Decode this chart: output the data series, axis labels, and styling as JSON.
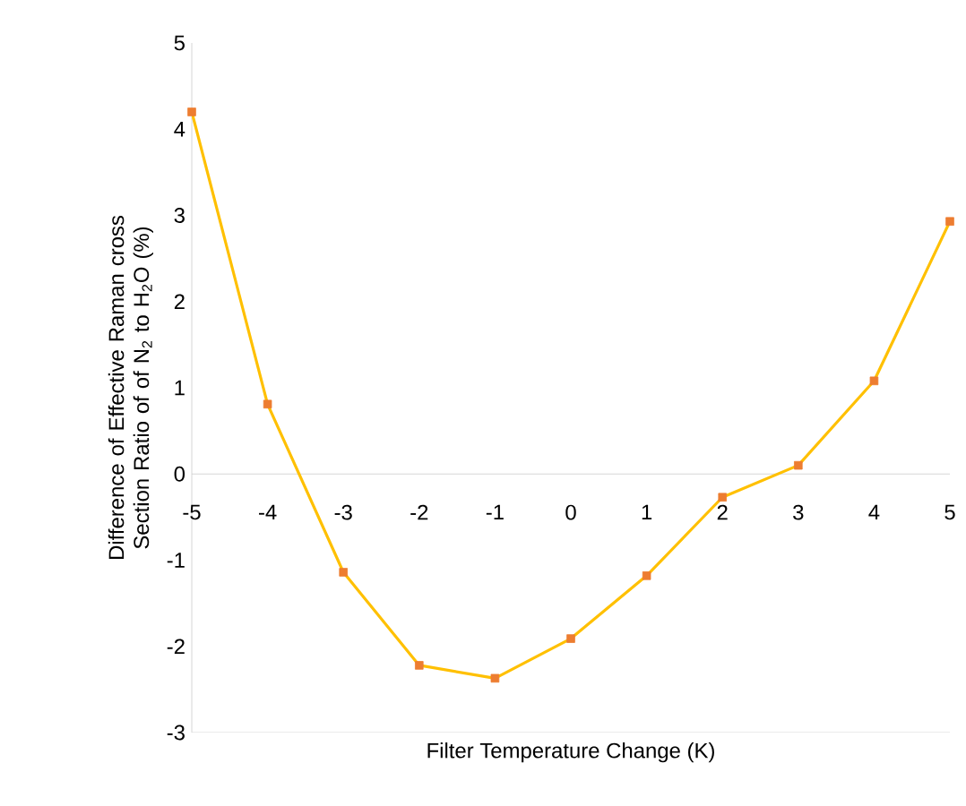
{
  "chart_data": {
    "type": "line",
    "xlabel": "Filter Temperature Change (K)",
    "ylabel": "Difference of Effective Raman cross Section Ratio of of N$_{2}$ to H$_{2}$O (%)",
    "x": [
      -5,
      -4,
      -3,
      -2,
      -1,
      0,
      1,
      2,
      3,
      4,
      5
    ],
    "series": [
      {
        "color": "#ffc000",
        "colors": [
          "#ed7d31",
          "#ed7d31",
          "#ed7d31",
          "#ed7d31",
          "#ed7d31",
          "#ed7d31",
          "#ed7d31",
          "#ed7d31",
          "#ed7d31",
          "#ed7d31",
          "#ed7d31"
        ],
        "values": [
          4.2,
          0.81,
          -1.14,
          -2.22,
          -2.37,
          -1.91,
          -1.18,
          -0.27,
          0.1,
          1.08,
          2.93
        ]
      }
    ],
    "xlim": [
      -5,
      5
    ],
    "ylim": [
      -3,
      5
    ],
    "xticks": [
      -5,
      -4,
      -3,
      -2,
      -1,
      0,
      1,
      2,
      3,
      4,
      5
    ],
    "yticks": [
      -3,
      -2,
      -1,
      0,
      1,
      2,
      3,
      4,
      5
    ],
    "marker": "square",
    "line_style": "solid",
    "grid": false
  }
}
